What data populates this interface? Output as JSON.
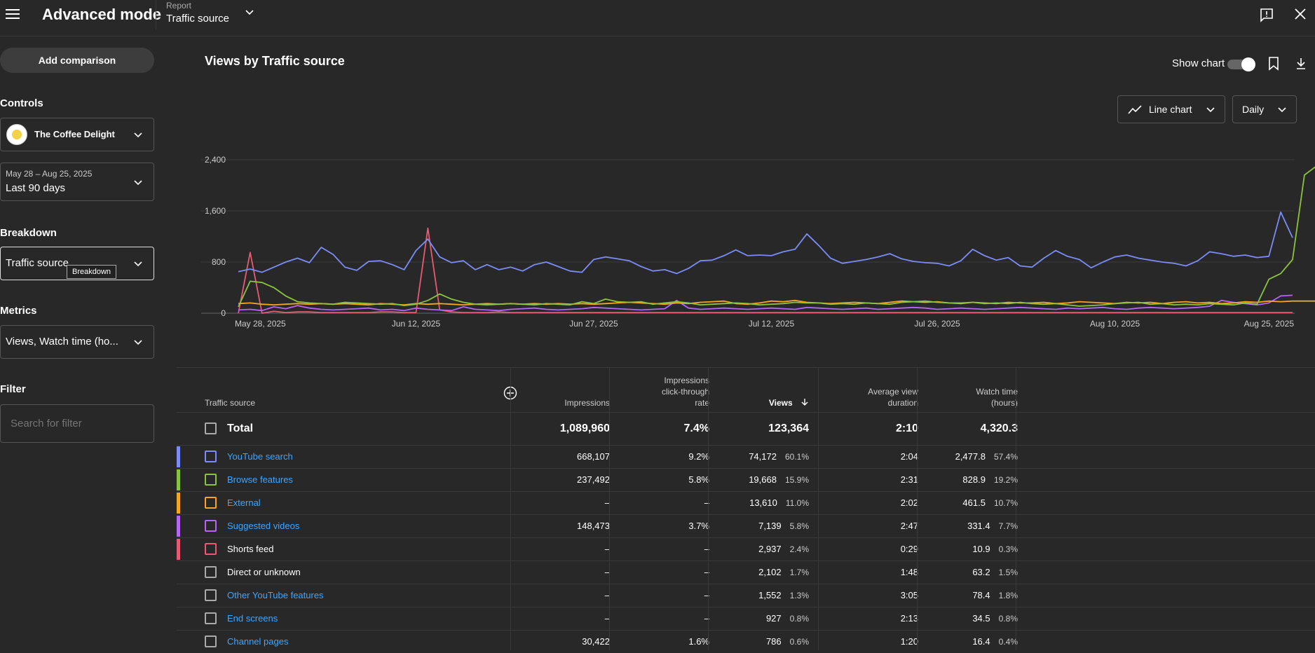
{
  "header": {
    "app_title": "Advanced mode",
    "report_label": "Report",
    "report_value": "Traffic source"
  },
  "sidebar": {
    "add_comparison": "Add comparison",
    "controls_label": "Controls",
    "channel_name": "The Coffee Delight",
    "date_range": "May 28 – Aug 25, 2025",
    "date_preset": "Last 90 days",
    "breakdown_label": "Breakdown",
    "breakdown_value": "Traffic source",
    "breakdown_tooltip": "Breakdown",
    "metrics_label": "Metrics",
    "metrics_value": "Views, Watch time (ho...",
    "filter_label": "Filter",
    "filter_placeholder": "Search for filter"
  },
  "main": {
    "chart_title": "Views by Traffic source",
    "show_chart": "Show chart",
    "chart_type": "Line chart",
    "granularity": "Daily"
  },
  "colors": {
    "youtube_search": "#7b8cf6",
    "browse_features": "#8ac43f",
    "external": "#f5a623",
    "suggested": "#b765f5",
    "shorts": "#e85a71"
  },
  "chart_data": {
    "type": "line",
    "yticks": [
      "0",
      "800",
      "1,600",
      "2,400"
    ],
    "ylim": [
      0,
      2400
    ],
    "xticks": [
      "May 28, 2025",
      "Jun 12, 2025",
      "Jun 27, 2025",
      "Jul 12, 2025",
      "Jul 26, 2025",
      "Aug 10, 2025",
      "Aug 25, 2025"
    ],
    "days": 90,
    "series": [
      {
        "key": "youtube_search",
        "values": [
          650,
          690,
          640,
          720,
          800,
          860,
          790,
          1030,
          920,
          720,
          670,
          810,
          820,
          760,
          680,
          980,
          1160,
          880,
          790,
          820,
          680,
          760,
          680,
          720,
          660,
          760,
          800,
          730,
          660,
          640,
          840,
          880,
          850,
          820,
          730,
          660,
          680,
          620,
          700,
          820,
          830,
          900,
          990,
          900,
          910,
          900,
          960,
          1000,
          1240,
          1060,
          860,
          780,
          810,
          840,
          880,
          930,
          850,
          810,
          790,
          780,
          740,
          820,
          1000,
          900,
          830,
          870,
          740,
          720,
          860,
          980,
          890,
          840,
          710,
          800,
          880,
          910,
          860,
          830,
          800,
          780,
          740,
          820,
          960,
          930,
          890,
          910,
          870,
          890,
          1580,
          1180
        ]
      },
      {
        "key": "browse_features",
        "values": [
          100,
          500,
          480,
          400,
          270,
          180,
          160,
          150,
          140,
          170,
          160,
          150,
          140,
          150,
          120,
          140,
          200,
          300,
          220,
          170,
          140,
          130,
          140,
          150,
          140,
          130,
          150,
          140,
          130,
          180,
          150,
          220,
          180,
          170,
          180,
          140,
          160,
          180,
          160,
          130,
          140,
          150,
          160,
          150,
          130,
          140,
          150,
          170,
          160,
          160,
          140,
          150,
          140,
          160,
          150,
          140,
          170,
          180,
          190,
          170,
          160,
          160,
          170,
          150,
          160,
          150,
          170,
          150,
          140,
          150,
          130,
          110,
          120,
          130,
          150,
          160,
          170,
          140,
          150,
          130,
          140,
          130,
          150,
          140,
          130,
          160,
          140,
          530,
          620,
          840,
          2160,
          2300
        ]
      },
      {
        "key": "external",
        "values": [
          150,
          160,
          140,
          130,
          140,
          150,
          140,
          150,
          140,
          150,
          140,
          130,
          150,
          140,
          130,
          150,
          140,
          150,
          140,
          130,
          140,
          150,
          140,
          150,
          140,
          150,
          140,
          150,
          140,
          150,
          140,
          150,
          160,
          170,
          160,
          150,
          140,
          160,
          150,
          170,
          180,
          190,
          150,
          140,
          160,
          190,
          180,
          200,
          170,
          160,
          150,
          160,
          170,
          160,
          150,
          170,
          190,
          180,
          170,
          180,
          160,
          150,
          170,
          160,
          150,
          170,
          160,
          160,
          170,
          150,
          160,
          180,
          170,
          160,
          150,
          170,
          160,
          170,
          150,
          170,
          180,
          160,
          170,
          150,
          160,
          180,
          170,
          190,
          180,
          190,
          190,
          190
        ]
      },
      {
        "key": "suggested",
        "values": [
          50,
          60,
          40,
          100,
          70,
          120,
          80,
          60,
          50,
          60,
          70,
          80,
          50,
          60,
          40,
          80,
          60,
          50,
          40,
          100,
          60,
          50,
          40,
          60,
          70,
          80,
          60,
          50,
          60,
          70,
          90,
          80,
          70,
          60,
          50,
          60,
          70,
          200,
          80,
          60,
          70,
          80,
          70,
          60,
          70,
          80,
          70,
          60,
          90,
          80,
          70,
          60,
          70,
          80,
          60,
          70,
          80,
          90,
          80,
          60,
          70,
          80,
          70,
          60,
          70,
          80,
          90,
          80,
          70,
          60,
          80,
          70,
          80,
          90,
          70,
          60,
          80,
          90,
          80,
          70,
          80,
          90,
          110,
          200,
          170,
          150,
          130,
          160,
          270,
          280
        ]
      },
      {
        "key": "shorts",
        "values": [
          0,
          950,
          0,
          30,
          10,
          20,
          20,
          10,
          10,
          10,
          10,
          10,
          20,
          20,
          10,
          10,
          1330,
          50,
          20,
          10,
          10,
          10,
          20,
          10,
          10,
          10,
          10,
          10,
          10,
          10,
          10,
          10,
          10,
          10,
          10,
          10,
          10,
          10,
          10,
          10,
          10,
          10,
          10,
          10,
          10,
          10,
          10,
          10,
          10,
          10,
          10,
          10,
          10,
          10,
          10,
          10,
          10,
          10,
          10,
          10,
          10,
          10,
          10,
          10,
          10,
          10,
          10,
          10,
          10,
          10,
          10,
          10,
          10,
          10,
          10,
          10,
          10,
          10,
          10,
          10,
          10,
          10,
          10,
          10,
          10,
          10,
          10,
          10,
          10,
          10
        ]
      }
    ]
  },
  "table": {
    "headers": {
      "source": "Traffic source",
      "impressions": "Impressions",
      "ctr_1": "Impressions",
      "ctr_2": "click-through",
      "ctr_3": "rate",
      "views": "Views",
      "avd_1": "Average view",
      "avd_2": "duration",
      "wt_1": "Watch time",
      "wt_2": "(hours)"
    },
    "total": {
      "label": "Total",
      "impressions": "1,089,960",
      "ctr": "7.4%",
      "views": "123,364",
      "avd": "2:10",
      "watch": "4,320.3"
    },
    "rows": [
      {
        "name": "YouTube search",
        "link": true,
        "color": "#7b8cf6",
        "impressions": "668,107",
        "ctr": "9.2%",
        "views": "74,172",
        "views_pct": "60.1%",
        "avd": "2:04",
        "watch": "2,477.8",
        "watch_pct": "57.4%"
      },
      {
        "name": "Browse features",
        "link": true,
        "color": "#8ac43f",
        "impressions": "237,492",
        "ctr": "5.8%",
        "views": "19,668",
        "views_pct": "15.9%",
        "avd": "2:31",
        "watch": "828.9",
        "watch_pct": "19.2%"
      },
      {
        "name": "External",
        "link": true,
        "color": "#f5a623",
        "impressions": "–",
        "ctr": "–",
        "views": "13,610",
        "views_pct": "11.0%",
        "avd": "2:02",
        "watch": "461.5",
        "watch_pct": "10.7%"
      },
      {
        "name": "Suggested videos",
        "link": true,
        "color": "#b765f5",
        "impressions": "148,473",
        "ctr": "3.7%",
        "views": "7,139",
        "views_pct": "5.8%",
        "avd": "2:47",
        "watch": "331.4",
        "watch_pct": "7.7%"
      },
      {
        "name": "Shorts feed",
        "link": false,
        "color": "#e85a71",
        "impressions": "–",
        "ctr": "–",
        "views": "2,937",
        "views_pct": "2.4%",
        "avd": "0:29",
        "watch": "10.9",
        "watch_pct": "0.3%"
      },
      {
        "name": "Direct or unknown",
        "link": false,
        "color": "",
        "impressions": "–",
        "ctr": "–",
        "views": "2,102",
        "views_pct": "1.7%",
        "avd": "1:48",
        "watch": "63.2",
        "watch_pct": "1.5%"
      },
      {
        "name": "Other YouTube features",
        "link": true,
        "color": "",
        "impressions": "–",
        "ctr": "–",
        "views": "1,552",
        "views_pct": "1.3%",
        "avd": "3:05",
        "watch": "78.4",
        "watch_pct": "1.8%"
      },
      {
        "name": "End screens",
        "link": true,
        "color": "",
        "impressions": "–",
        "ctr": "–",
        "views": "927",
        "views_pct": "0.8%",
        "avd": "2:13",
        "watch": "34.5",
        "watch_pct": "0.8%"
      },
      {
        "name": "Channel pages",
        "link": true,
        "color": "",
        "impressions": "30,422",
        "ctr": "1.6%",
        "views": "786",
        "views_pct": "0.6%",
        "avd": "1:20",
        "watch": "16.4",
        "watch_pct": "0.4%"
      }
    ]
  }
}
